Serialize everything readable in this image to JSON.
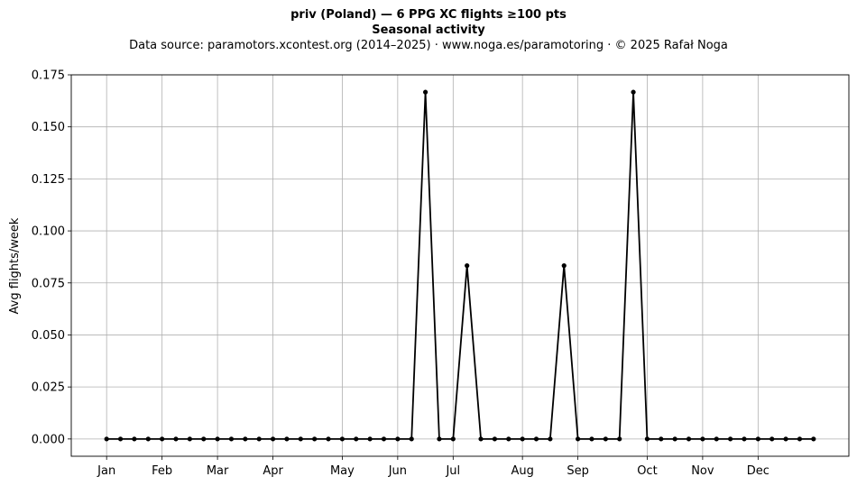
{
  "title": "priv (Poland)  —  6 PPG XC flights ≥100 pts",
  "subtitle": "Seasonal activity",
  "source": "Data source: paramotors.xcontest.org (2014–2025)  ·  www.noga.es/paramotoring  ·  © 2025 Rafał Noga",
  "chart_data": {
    "type": "line",
    "title": "priv (Poland)  —  6 PPG XC flights ≥100 pts",
    "subtitle": "Seasonal activity",
    "xlabel": "",
    "ylabel": "Avg flights/week",
    "x_unit": "week of year",
    "x": [
      1,
      2,
      3,
      4,
      5,
      6,
      7,
      8,
      9,
      10,
      11,
      12,
      13,
      14,
      15,
      16,
      17,
      18,
      19,
      20,
      21,
      22,
      23,
      24,
      25,
      26,
      27,
      28,
      29,
      30,
      31,
      32,
      33,
      34,
      35,
      36,
      37,
      38,
      39,
      40,
      41,
      42,
      43,
      44,
      45,
      46,
      47,
      48,
      49,
      50,
      51,
      52
    ],
    "series": [
      {
        "color": "#000000",
        "values": [
          0,
          0,
          0,
          0,
          0,
          0,
          0,
          0,
          0,
          0,
          0,
          0,
          0,
          0,
          0,
          0,
          0,
          0,
          0,
          0,
          0,
          0,
          0,
          0.1667,
          0,
          0,
          0.0833,
          0,
          0,
          0,
          0,
          0,
          0,
          0.0833,
          0,
          0,
          0,
          0,
          0.1667,
          0,
          0,
          0,
          0,
          0,
          0,
          0,
          0,
          0,
          0,
          0,
          0,
          0
        ]
      }
    ],
    "xticks": [
      {
        "label": "Jan",
        "x": 1
      },
      {
        "label": "Feb",
        "x": 5
      },
      {
        "label": "Mar",
        "x": 9
      },
      {
        "label": "Apr",
        "x": 13
      },
      {
        "label": "May",
        "x": 18
      },
      {
        "label": "Jun",
        "x": 22
      },
      {
        "label": "Jul",
        "x": 26
      },
      {
        "label": "Aug",
        "x": 31
      },
      {
        "label": "Sep",
        "x": 35
      },
      {
        "label": "Oct",
        "x": 40
      },
      {
        "label": "Nov",
        "x": 44
      },
      {
        "label": "Dec",
        "x": 48
      }
    ],
    "yticks": [
      "0.000",
      "0.025",
      "0.050",
      "0.075",
      "0.100",
      "0.125",
      "0.150",
      "0.175"
    ],
    "xlim": [
      -1.55,
      54.55
    ],
    "ylim": [
      -0.0083,
      0.175
    ],
    "grid": true
  }
}
